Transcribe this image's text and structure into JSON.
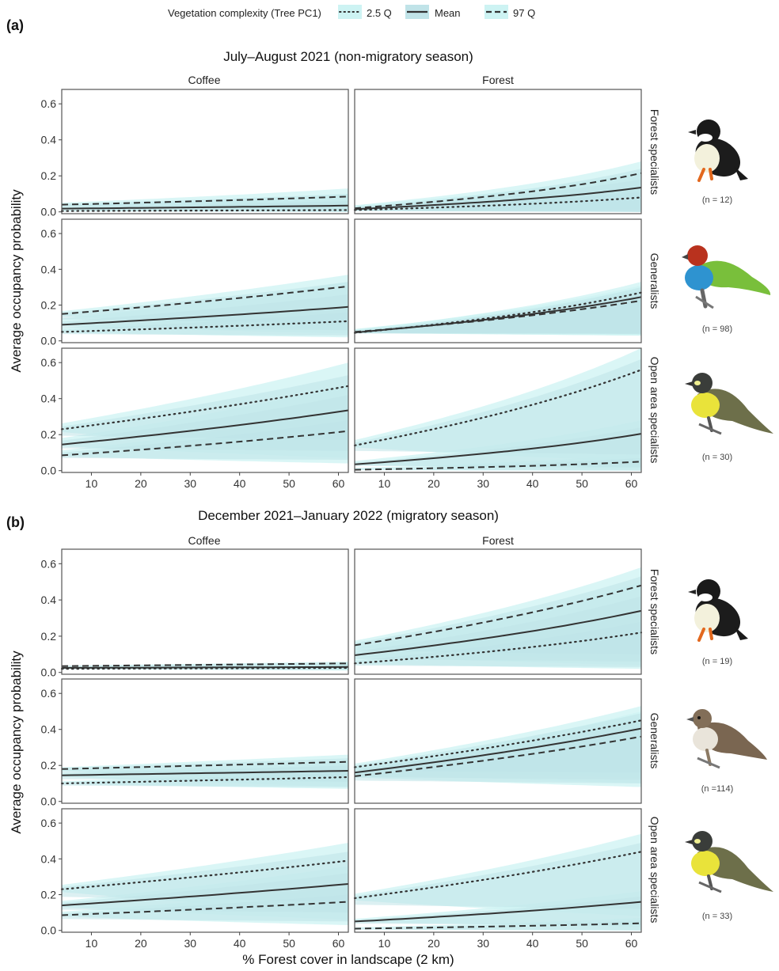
{
  "legend": {
    "title": "Vegetation complexity (Tree PC1)",
    "items": [
      {
        "key": "q25",
        "label": "2.5 Q",
        "dash": "dotted"
      },
      {
        "key": "mean",
        "label": "Mean",
        "dash": "solid"
      },
      {
        "key": "q97",
        "label": "97 Q",
        "dash": "dashed"
      }
    ]
  },
  "x_axis": {
    "label": "% Forest cover in landscape (2 km)",
    "ticks": [
      10,
      20,
      30,
      40,
      50,
      60
    ],
    "range": [
      4,
      62
    ]
  },
  "y_axis": {
    "label": "Average occupancy probability",
    "ticks": [
      0.0,
      0.2,
      0.4,
      0.6
    ],
    "range": [
      -0.01,
      0.68
    ]
  },
  "colors": {
    "band_outer": "#cdf3f3",
    "band_inner": "#c0e3e8",
    "line": "#333333",
    "panel_border": "#555555"
  },
  "panels": [
    {
      "id": "a",
      "label": "(a)",
      "title": "July–August 2021 (non-migratory season)",
      "columns": [
        "Coffee",
        "Forest"
      ]
    },
    {
      "id": "b",
      "label": "(b)",
      "title": "December 2021–January 2022 (migratory season)",
      "columns": [
        "Coffee",
        "Forest"
      ]
    }
  ],
  "rows": [
    "Forest specialists",
    "Generalists",
    "Open area specialists"
  ],
  "species_counts": {
    "a": [
      "(n = 12)",
      "(n = 98)",
      "(n = 30)"
    ],
    "b": [
      "(n = 19)",
      "(n =114)",
      "(n = 33)"
    ]
  },
  "bird_icons": {
    "a": [
      "white-breasted-black-bird-icon",
      "red-headed-green-tanager-icon",
      "yellow-flycatcher-icon"
    ],
    "b": [
      "white-breasted-black-bird-icon",
      "brown-thrush-icon",
      "yellow-flycatcher-icon"
    ]
  },
  "chart_data": [
    {
      "type": "line",
      "panel": "a",
      "subplots": [
        {
          "row": "Forest specialists",
          "col": "Coffee",
          "x": [
            4,
            62
          ],
          "series": [
            {
              "name": "2.5 Q",
              "y": [
                0.005,
                0.01
              ],
              "band": [
                0.0,
                0.03
              ],
              "band_inner": [
                0.0,
                0.02
              ]
            },
            {
              "name": "Mean",
              "y": [
                0.018,
                0.035
              ],
              "band": [
                0.0,
                0.1
              ],
              "band_inner": [
                0.005,
                0.06
              ]
            },
            {
              "name": "97 Q",
              "y": [
                0.04,
                0.085
              ],
              "band": [
                0.01,
                0.13
              ],
              "band_inner": [
                0.02,
                0.1
              ]
            }
          ]
        },
        {
          "row": "Forest specialists",
          "col": "Forest",
          "x": [
            4,
            62
          ],
          "series": [
            {
              "name": "2.5 Q",
              "y": [
                0.01,
                0.08
              ],
              "band": [
                0.0,
                0.15
              ],
              "band_inner": [
                0.0,
                0.11
              ]
            },
            {
              "name": "Mean",
              "y": [
                0.015,
                0.135
              ],
              "band": [
                0.0,
                0.22
              ],
              "band_inner": [
                0.0,
                0.18
              ]
            },
            {
              "name": "97 Q",
              "y": [
                0.02,
                0.215
              ],
              "band": [
                0.0,
                0.28
              ],
              "band_inner": [
                0.01,
                0.24
              ]
            }
          ]
        },
        {
          "row": "Generalists",
          "col": "Coffee",
          "x": [
            4,
            62
          ],
          "series": [
            {
              "name": "2.5 Q",
              "y": [
                0.05,
                0.11
              ],
              "band": [
                0.02,
                0.2
              ],
              "band_inner": [
                0.03,
                0.16
              ]
            },
            {
              "name": "Mean",
              "y": [
                0.09,
                0.19
              ],
              "band": [
                0.04,
                0.33
              ],
              "band_inner": [
                0.06,
                0.26
              ]
            },
            {
              "name": "97 Q",
              "y": [
                0.15,
                0.305
              ],
              "band": [
                0.06,
                0.37
              ],
              "band_inner": [
                0.1,
                0.33
              ]
            }
          ]
        },
        {
          "row": "Generalists",
          "col": "Forest",
          "x": [
            4,
            62
          ],
          "series": [
            {
              "name": "2.5 Q",
              "y": [
                0.045,
                0.27
              ],
              "band": [
                0.03,
                0.33
              ],
              "band_inner": [
                0.04,
                0.3
              ]
            },
            {
              "name": "Mean",
              "y": [
                0.047,
                0.245
              ],
              "band": [
                0.03,
                0.31
              ],
              "band_inner": [
                0.04,
                0.28
              ]
            },
            {
              "name": "97 Q",
              "y": [
                0.05,
                0.225
              ],
              "band": [
                0.03,
                0.29
              ],
              "band_inner": [
                0.04,
                0.26
              ]
            }
          ]
        },
        {
          "row": "Open area specialists",
          "col": "Coffee",
          "x": [
            4,
            62
          ],
          "series": [
            {
              "name": "2.5 Q",
              "y": [
                0.23,
                0.47
              ],
              "band": [
                0.1,
                0.6
              ],
              "band_inner": [
                0.17,
                0.53
              ]
            },
            {
              "name": "Mean",
              "y": [
                0.145,
                0.335
              ],
              "band": [
                0.07,
                0.48
              ],
              "band_inner": [
                0.11,
                0.42
              ]
            },
            {
              "name": "97 Q",
              "y": [
                0.085,
                0.22
              ],
              "band": [
                0.04,
                0.33
              ],
              "band_inner": [
                0.06,
                0.28
              ]
            }
          ]
        },
        {
          "row": "Open area specialists",
          "col": "Forest",
          "x": [
            4,
            62
          ],
          "series": [
            {
              "name": "2.5 Q",
              "y": [
                0.14,
                0.56
              ],
              "band": [
                0.05,
                0.68
              ],
              "band_inner": [
                0.09,
                0.62
              ]
            },
            {
              "name": "Mean",
              "y": [
                0.035,
                0.205
              ],
              "band": [
                0.01,
                0.28
              ],
              "band_inner": [
                0.02,
                0.24
              ]
            },
            {
              "name": "97 Q",
              "y": [
                0.005,
                0.05
              ],
              "band": [
                0.0,
                0.09
              ],
              "band_inner": [
                0.0,
                0.07
              ]
            }
          ]
        }
      ]
    },
    {
      "type": "line",
      "panel": "b",
      "subplots": [
        {
          "row": "Forest specialists",
          "col": "Coffee",
          "x": [
            4,
            62
          ],
          "series": [
            {
              "name": "2.5 Q",
              "y": [
                0.02,
                0.025
              ],
              "band": [
                0.01,
                0.04
              ],
              "band_inner": [
                0.015,
                0.03
              ]
            },
            {
              "name": "Mean",
              "y": [
                0.025,
                0.03
              ],
              "band": [
                0.015,
                0.045
              ],
              "band_inner": [
                0.02,
                0.035
              ]
            },
            {
              "name": "97 Q",
              "y": [
                0.035,
                0.05
              ],
              "band": [
                0.02,
                0.06
              ],
              "band_inner": [
                0.025,
                0.055
              ]
            }
          ]
        },
        {
          "row": "Forest specialists",
          "col": "Forest",
          "x": [
            4,
            62
          ],
          "series": [
            {
              "name": "2.5 Q",
              "y": [
                0.05,
                0.22
              ],
              "band": [
                0.02,
                0.35
              ],
              "band_inner": [
                0.03,
                0.28
              ]
            },
            {
              "name": "Mean",
              "y": [
                0.095,
                0.34
              ],
              "band": [
                0.04,
                0.5
              ],
              "band_inner": [
                0.06,
                0.42
              ]
            },
            {
              "name": "97 Q",
              "y": [
                0.15,
                0.48
              ],
              "band": [
                0.06,
                0.58
              ],
              "band_inner": [
                0.1,
                0.53
              ]
            }
          ]
        },
        {
          "row": "Generalists",
          "col": "Coffee",
          "x": [
            4,
            62
          ],
          "series": [
            {
              "name": "2.5 Q",
              "y": [
                0.1,
                0.135
              ],
              "band": [
                0.07,
                0.18
              ],
              "band_inner": [
                0.08,
                0.16
              ]
            },
            {
              "name": "Mean",
              "y": [
                0.145,
                0.17
              ],
              "band": [
                0.08,
                0.22
              ],
              "band_inner": [
                0.11,
                0.2
              ]
            },
            {
              "name": "97 Q",
              "y": [
                0.18,
                0.22
              ],
              "band": [
                0.1,
                0.26
              ],
              "band_inner": [
                0.14,
                0.24
              ]
            }
          ]
        },
        {
          "row": "Generalists",
          "col": "Forest",
          "x": [
            4,
            62
          ],
          "series": [
            {
              "name": "2.5 Q",
              "y": [
                0.19,
                0.45
              ],
              "band": [
                0.13,
                0.53
              ],
              "band_inner": [
                0.16,
                0.49
              ]
            },
            {
              "name": "Mean",
              "y": [
                0.16,
                0.405
              ],
              "band": [
                0.1,
                0.5
              ],
              "band_inner": [
                0.12,
                0.46
              ]
            },
            {
              "name": "97 Q",
              "y": [
                0.14,
                0.36
              ],
              "band": [
                0.08,
                0.47
              ],
              "band_inner": [
                0.1,
                0.42
              ]
            }
          ]
        },
        {
          "row": "Open area specialists",
          "col": "Coffee",
          "x": [
            4,
            62
          ],
          "series": [
            {
              "name": "2.5 Q",
              "y": [
                0.23,
                0.39
              ],
              "band": [
                0.1,
                0.49
              ],
              "band_inner": [
                0.16,
                0.44
              ]
            },
            {
              "name": "Mean",
              "y": [
                0.14,
                0.26
              ],
              "band": [
                0.06,
                0.36
              ],
              "band_inner": [
                0.1,
                0.32
              ]
            },
            {
              "name": "97 Q",
              "y": [
                0.085,
                0.16
              ],
              "band": [
                0.03,
                0.24
              ],
              "band_inner": [
                0.05,
                0.2
              ]
            }
          ]
        },
        {
          "row": "Open area specialists",
          "col": "Forest",
          "x": [
            4,
            62
          ],
          "series": [
            {
              "name": "2.5 Q",
              "y": [
                0.18,
                0.44
              ],
              "band": [
                0.08,
                0.54
              ],
              "band_inner": [
                0.12,
                0.49
              ]
            },
            {
              "name": "Mean",
              "y": [
                0.05,
                0.16
              ],
              "band": [
                0.02,
                0.22
              ],
              "band_inner": [
                0.03,
                0.19
              ]
            },
            {
              "name": "97 Q",
              "y": [
                0.01,
                0.04
              ],
              "band": [
                0.0,
                0.07
              ],
              "band_inner": [
                0.0,
                0.055
              ]
            }
          ]
        }
      ]
    }
  ]
}
